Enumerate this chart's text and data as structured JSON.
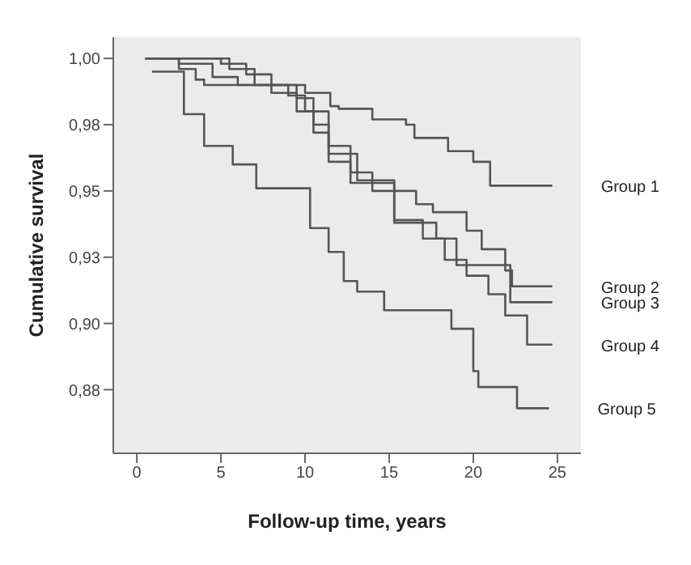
{
  "chart_data": {
    "type": "step",
    "xlabel": "Follow-up time, years",
    "ylabel": "Cumulative survival",
    "xlim": [
      -1.4,
      26.4
    ],
    "xticks": [
      0,
      5,
      10,
      15,
      20,
      25
    ],
    "ylim": [
      0.851,
      1.008
    ],
    "yticks": [
      {
        "value": 1.0,
        "label": "1,00"
      },
      {
        "value": 0.975,
        "label": "0,98"
      },
      {
        "value": 0.95,
        "label": "0,95"
      },
      {
        "value": 0.925,
        "label": "0,93"
      },
      {
        "value": 0.9,
        "label": "0,90"
      },
      {
        "value": 0.875,
        "label": "0,88"
      }
    ],
    "grid": false,
    "legend": false,
    "marker": "none",
    "line_style": "solid",
    "series": [
      {
        "name": "Group 1",
        "color": "#555555",
        "x": [
          0.5,
          1.5,
          2.5,
          3.5,
          4,
          9,
          10,
          11.5,
          12,
          14,
          16,
          16.5,
          18,
          18.5,
          20,
          21,
          24.7
        ],
        "values": [
          1.0,
          1.0,
          0.996,
          0.992,
          0.99,
          0.99,
          0.987,
          0.982,
          0.981,
          0.977,
          0.975,
          0.97,
          0.97,
          0.965,
          0.961,
          0.952,
          0.952
        ]
      },
      {
        "name": "Group 2",
        "color": "#555555",
        "x": [
          0.5,
          3.5,
          5,
          6.5,
          8,
          9.5,
          10.5,
          11.4,
          12.7,
          14,
          16.6,
          17.6,
          19.6,
          20.5,
          21.9,
          22.3,
          24.7
        ],
        "values": [
          1.0,
          1.0,
          0.998,
          0.994,
          0.99,
          0.985,
          0.975,
          0.967,
          0.957,
          0.95,
          0.945,
          0.942,
          0.935,
          0.928,
          0.92,
          0.914,
          0.914
        ]
      },
      {
        "name": "Group 3",
        "color": "#555555",
        "x": [
          0.5,
          4,
          5.5,
          7,
          9,
          10,
          11.4,
          13.1,
          15.3,
          16.8,
          17.8,
          19,
          22.2,
          24.7
        ],
        "values": [
          1.0,
          1.0,
          0.996,
          0.99,
          0.986,
          0.98,
          0.964,
          0.954,
          0.938,
          0.938,
          0.932,
          0.922,
          0.908,
          0.908
        ]
      },
      {
        "name": "Group 4",
        "color": "#555555",
        "x": [
          1.5,
          2.5,
          4.5,
          6,
          8,
          9.5,
          10.5,
          11.4,
          12.7,
          15.3,
          17,
          18.3,
          19.6,
          20.9,
          21.9,
          23.2,
          24.7
        ],
        "values": [
          1.0,
          0.998,
          0.993,
          0.99,
          0.987,
          0.98,
          0.972,
          0.961,
          0.953,
          0.939,
          0.932,
          0.924,
          0.918,
          0.911,
          0.903,
          0.892,
          0.892
        ]
      },
      {
        "name": "Group 5",
        "color": "#555555",
        "x": [
          0.9,
          2.8,
          4,
          5.7,
          7.1,
          8.8,
          10.3,
          11.4,
          12.3,
          13.1,
          14.7,
          17.2,
          18.7,
          20,
          20.3,
          22.6,
          24.5
        ],
        "values": [
          0.995,
          0.979,
          0.967,
          0.96,
          0.951,
          0.951,
          0.936,
          0.927,
          0.916,
          0.912,
          0.905,
          0.905,
          0.898,
          0.882,
          0.876,
          0.868,
          0.868
        ]
      }
    ]
  }
}
